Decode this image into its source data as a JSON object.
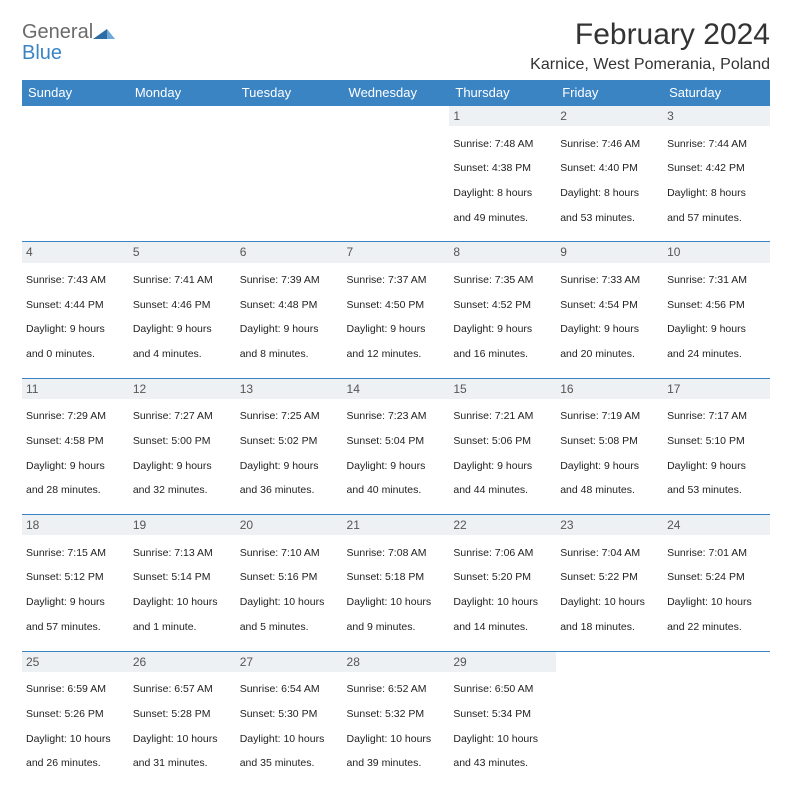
{
  "logo": {
    "word1": "General",
    "word2": "Blue"
  },
  "title": "February 2024",
  "location": "Karnice, West Pomerania, Poland",
  "colors": {
    "header_bg": "#3b84c4",
    "header_fg": "#ffffff",
    "daynum_bg": "#eef1f3",
    "daynum_fg": "#555555",
    "border": "#3b84c4",
    "text": "#222222",
    "logo_gray": "#6b6b6b",
    "logo_blue": "#3b84c4",
    "page_bg": "#ffffff"
  },
  "weekdays": [
    "Sunday",
    "Monday",
    "Tuesday",
    "Wednesday",
    "Thursday",
    "Friday",
    "Saturday"
  ],
  "weeks": [
    [
      null,
      null,
      null,
      null,
      {
        "n": "1",
        "sr": "Sunrise: 7:48 AM",
        "ss": "Sunset: 4:38 PM",
        "d1": "Daylight: 8 hours",
        "d2": "and 49 minutes."
      },
      {
        "n": "2",
        "sr": "Sunrise: 7:46 AM",
        "ss": "Sunset: 4:40 PM",
        "d1": "Daylight: 8 hours",
        "d2": "and 53 minutes."
      },
      {
        "n": "3",
        "sr": "Sunrise: 7:44 AM",
        "ss": "Sunset: 4:42 PM",
        "d1": "Daylight: 8 hours",
        "d2": "and 57 minutes."
      }
    ],
    [
      {
        "n": "4",
        "sr": "Sunrise: 7:43 AM",
        "ss": "Sunset: 4:44 PM",
        "d1": "Daylight: 9 hours",
        "d2": "and 0 minutes."
      },
      {
        "n": "5",
        "sr": "Sunrise: 7:41 AM",
        "ss": "Sunset: 4:46 PM",
        "d1": "Daylight: 9 hours",
        "d2": "and 4 minutes."
      },
      {
        "n": "6",
        "sr": "Sunrise: 7:39 AM",
        "ss": "Sunset: 4:48 PM",
        "d1": "Daylight: 9 hours",
        "d2": "and 8 minutes."
      },
      {
        "n": "7",
        "sr": "Sunrise: 7:37 AM",
        "ss": "Sunset: 4:50 PM",
        "d1": "Daylight: 9 hours",
        "d2": "and 12 minutes."
      },
      {
        "n": "8",
        "sr": "Sunrise: 7:35 AM",
        "ss": "Sunset: 4:52 PM",
        "d1": "Daylight: 9 hours",
        "d2": "and 16 minutes."
      },
      {
        "n": "9",
        "sr": "Sunrise: 7:33 AM",
        "ss": "Sunset: 4:54 PM",
        "d1": "Daylight: 9 hours",
        "d2": "and 20 minutes."
      },
      {
        "n": "10",
        "sr": "Sunrise: 7:31 AM",
        "ss": "Sunset: 4:56 PM",
        "d1": "Daylight: 9 hours",
        "d2": "and 24 minutes."
      }
    ],
    [
      {
        "n": "11",
        "sr": "Sunrise: 7:29 AM",
        "ss": "Sunset: 4:58 PM",
        "d1": "Daylight: 9 hours",
        "d2": "and 28 minutes."
      },
      {
        "n": "12",
        "sr": "Sunrise: 7:27 AM",
        "ss": "Sunset: 5:00 PM",
        "d1": "Daylight: 9 hours",
        "d2": "and 32 minutes."
      },
      {
        "n": "13",
        "sr": "Sunrise: 7:25 AM",
        "ss": "Sunset: 5:02 PM",
        "d1": "Daylight: 9 hours",
        "d2": "and 36 minutes."
      },
      {
        "n": "14",
        "sr": "Sunrise: 7:23 AM",
        "ss": "Sunset: 5:04 PM",
        "d1": "Daylight: 9 hours",
        "d2": "and 40 minutes."
      },
      {
        "n": "15",
        "sr": "Sunrise: 7:21 AM",
        "ss": "Sunset: 5:06 PM",
        "d1": "Daylight: 9 hours",
        "d2": "and 44 minutes."
      },
      {
        "n": "16",
        "sr": "Sunrise: 7:19 AM",
        "ss": "Sunset: 5:08 PM",
        "d1": "Daylight: 9 hours",
        "d2": "and 48 minutes."
      },
      {
        "n": "17",
        "sr": "Sunrise: 7:17 AM",
        "ss": "Sunset: 5:10 PM",
        "d1": "Daylight: 9 hours",
        "d2": "and 53 minutes."
      }
    ],
    [
      {
        "n": "18",
        "sr": "Sunrise: 7:15 AM",
        "ss": "Sunset: 5:12 PM",
        "d1": "Daylight: 9 hours",
        "d2": "and 57 minutes."
      },
      {
        "n": "19",
        "sr": "Sunrise: 7:13 AM",
        "ss": "Sunset: 5:14 PM",
        "d1": "Daylight: 10 hours",
        "d2": "and 1 minute."
      },
      {
        "n": "20",
        "sr": "Sunrise: 7:10 AM",
        "ss": "Sunset: 5:16 PM",
        "d1": "Daylight: 10 hours",
        "d2": "and 5 minutes."
      },
      {
        "n": "21",
        "sr": "Sunrise: 7:08 AM",
        "ss": "Sunset: 5:18 PM",
        "d1": "Daylight: 10 hours",
        "d2": "and 9 minutes."
      },
      {
        "n": "22",
        "sr": "Sunrise: 7:06 AM",
        "ss": "Sunset: 5:20 PM",
        "d1": "Daylight: 10 hours",
        "d2": "and 14 minutes."
      },
      {
        "n": "23",
        "sr": "Sunrise: 7:04 AM",
        "ss": "Sunset: 5:22 PM",
        "d1": "Daylight: 10 hours",
        "d2": "and 18 minutes."
      },
      {
        "n": "24",
        "sr": "Sunrise: 7:01 AM",
        "ss": "Sunset: 5:24 PM",
        "d1": "Daylight: 10 hours",
        "d2": "and 22 minutes."
      }
    ],
    [
      {
        "n": "25",
        "sr": "Sunrise: 6:59 AM",
        "ss": "Sunset: 5:26 PM",
        "d1": "Daylight: 10 hours",
        "d2": "and 26 minutes."
      },
      {
        "n": "26",
        "sr": "Sunrise: 6:57 AM",
        "ss": "Sunset: 5:28 PM",
        "d1": "Daylight: 10 hours",
        "d2": "and 31 minutes."
      },
      {
        "n": "27",
        "sr": "Sunrise: 6:54 AM",
        "ss": "Sunset: 5:30 PM",
        "d1": "Daylight: 10 hours",
        "d2": "and 35 minutes."
      },
      {
        "n": "28",
        "sr": "Sunrise: 6:52 AM",
        "ss": "Sunset: 5:32 PM",
        "d1": "Daylight: 10 hours",
        "d2": "and 39 minutes."
      },
      {
        "n": "29",
        "sr": "Sunrise: 6:50 AM",
        "ss": "Sunset: 5:34 PM",
        "d1": "Daylight: 10 hours",
        "d2": "and 43 minutes."
      },
      null,
      null
    ]
  ]
}
